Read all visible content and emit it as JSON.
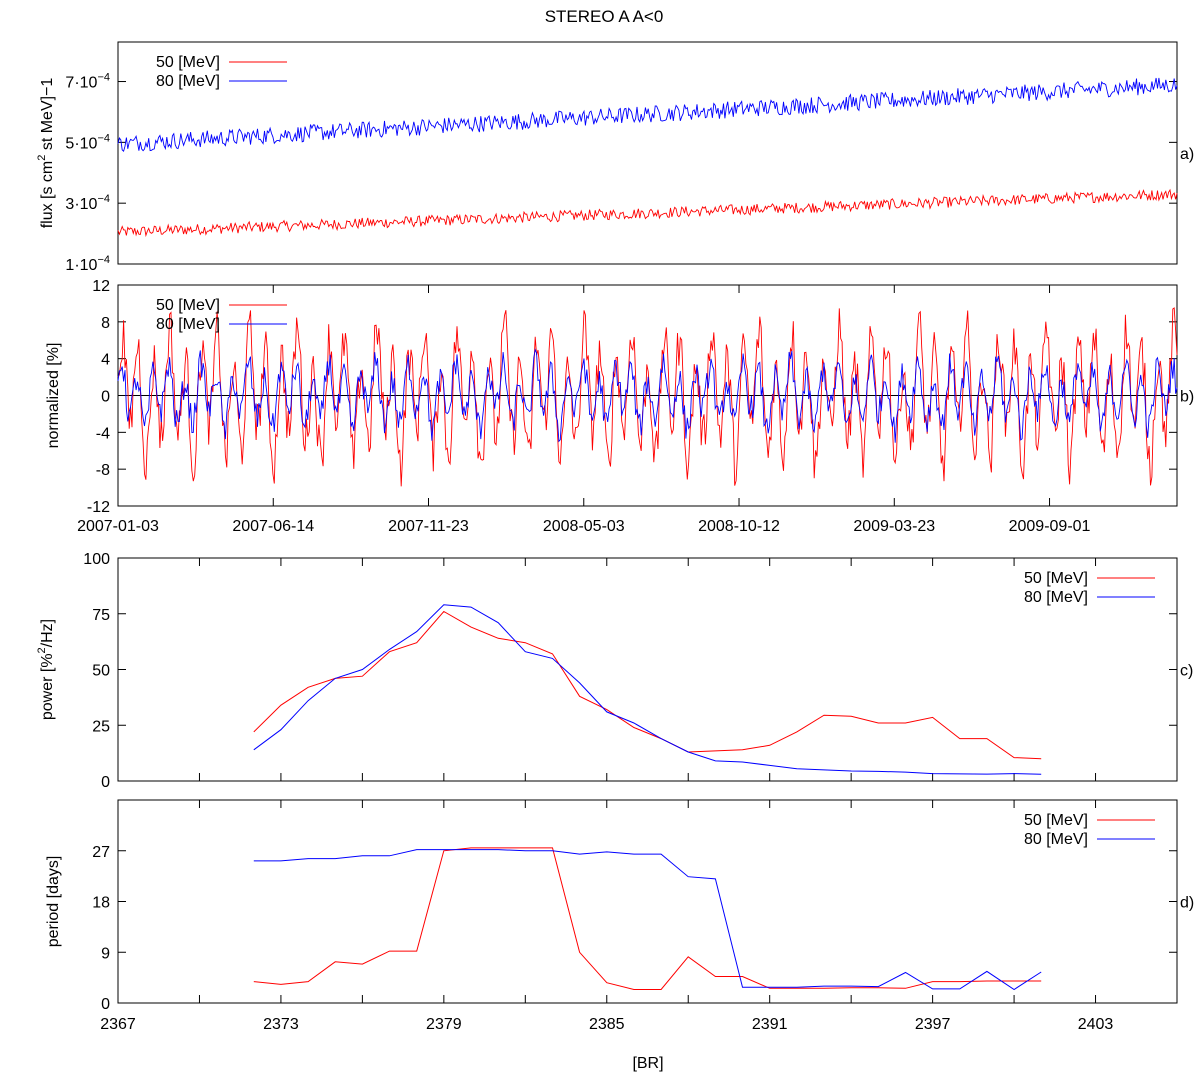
{
  "figure_title": "STEREO A A<0",
  "colors": {
    "red": "#ff0000",
    "blue": "#0000ff"
  },
  "chart_data": [
    {
      "panel": "a)",
      "type": "line",
      "ylabel_pre": "flux [s cm",
      "ylabel_sup": "2",
      "ylabel_post": " st MeV]−1",
      "y_ticks": [
        {
          "value": 0.0001,
          "base": "1·10",
          "exp": "−4"
        },
        {
          "value": 0.0003,
          "base": "3·10",
          "exp": "−4"
        },
        {
          "value": 0.0005,
          "base": "5·10",
          "exp": "−4"
        },
        {
          "value": 0.0007,
          "base": "7·10",
          "exp": "−4"
        }
      ],
      "ylim": [
        0.0001,
        0.00083
      ],
      "xlim": [
        0,
        1105
      ],
      "legend": [
        "50 [MeV]",
        "80 [MeV]"
      ],
      "legend_position": "top-left",
      "series": [
        {
          "name": "50 [MeV]",
          "color": "red",
          "n": 760,
          "start": 0.000205,
          "end": 0.00033,
          "noise": 1.8e-05
        },
        {
          "name": "80 [MeV]",
          "color": "blue",
          "n": 760,
          "start": 0.000495,
          "end": 0.00069,
          "noise": 2.8e-05
        }
      ]
    },
    {
      "panel": "b)",
      "type": "line",
      "ylabel": "normalized [%]",
      "y_ticks": [
        -12,
        -8,
        -4,
        0,
        4,
        8,
        12
      ],
      "ylim": [
        -12,
        12
      ],
      "xlim": [
        0,
        1105
      ],
      "x_tick_labels": [
        "2007-01-03",
        "2007-06-14",
        "2007-11-23",
        "2008-05-03",
        "2008-10-12",
        "2009-03-23",
        "2009-09-01"
      ],
      "x_tick_values": [
        0,
        162,
        324,
        486,
        648,
        810,
        972
      ],
      "legend": [
        "50 [MeV]",
        "80 [MeV]"
      ],
      "legend_position": "top-left",
      "series": [
        {
          "name": "50 [MeV]",
          "color": "red",
          "n": 760,
          "amplitude": 5.2,
          "noise": 1.2
        },
        {
          "name": "80 [MeV]",
          "color": "blue",
          "n": 760,
          "amplitude": 2.6,
          "noise": 0.7
        }
      ]
    },
    {
      "panel": "c)",
      "type": "line",
      "ylabel_pre": "power [%",
      "ylabel_sup": "2",
      "ylabel_post": "/Hz]",
      "y_ticks": [
        0,
        25,
        50,
        75,
        100
      ],
      "ylim": [
        0,
        100
      ],
      "xlim": [
        2367,
        2406
      ],
      "legend": [
        "50 [MeV]",
        "80 [MeV]"
      ],
      "legend_position": "top-right",
      "x": [
        2372,
        2373,
        2374,
        2375,
        2376,
        2377,
        2378,
        2379,
        2380,
        2381,
        2382,
        2383,
        2384,
        2385,
        2386,
        2387,
        2388,
        2389,
        2390,
        2391,
        2392,
        2393,
        2394,
        2395,
        2396,
        2397,
        2398,
        2399,
        2400,
        2401
      ],
      "series": [
        {
          "name": "50 [MeV]",
          "color": "red",
          "values": [
            22,
            34,
            42,
            46,
            47,
            58,
            62,
            76,
            69,
            64,
            62,
            57,
            38,
            32,
            24,
            19,
            13,
            13.5,
            14,
            16,
            22,
            29.5,
            29,
            26,
            26,
            28.5,
            19,
            19,
            10.5,
            10
          ]
        },
        {
          "name": "80 [MeV]",
          "color": "blue",
          "values": [
            14,
            23,
            36,
            46,
            50,
            59,
            67,
            79,
            78,
            71,
            58,
            55,
            44,
            31,
            26,
            19,
            13,
            9,
            8.5,
            7,
            5.5,
            5,
            4.5,
            4.3,
            4,
            3.3,
            3.2,
            3.1,
            3.3,
            3
          ]
        }
      ]
    },
    {
      "panel": "d)",
      "type": "line",
      "ylabel": "period [days]",
      "xlabel": "[BR]",
      "y_ticks": [
        0,
        9,
        18,
        27
      ],
      "ylim": [
        0,
        36
      ],
      "xlim": [
        2367,
        2406
      ],
      "x_ticks": [
        2367,
        2373,
        2379,
        2385,
        2391,
        2397,
        2403
      ],
      "legend": [
        "50 [MeV]",
        "80 [MeV]"
      ],
      "legend_position": "top-right",
      "x": [
        2372,
        2373,
        2374,
        2375,
        2376,
        2377,
        2378,
        2379,
        2380,
        2381,
        2382,
        2383,
        2384,
        2385,
        2386,
        2387,
        2388,
        2389,
        2390,
        2391,
        2392,
        2393,
        2394,
        2395,
        2396,
        2397,
        2398,
        2399,
        2400,
        2401
      ],
      "series": [
        {
          "name": "50 [MeV]",
          "color": "red",
          "values": [
            3.8,
            3.3,
            3.8,
            7.3,
            6.9,
            9.2,
            9.2,
            27,
            27.5,
            27.5,
            27.5,
            27.5,
            9,
            3.6,
            2.4,
            2.4,
            8.2,
            4.7,
            4.7,
            2.6,
            2.6,
            2.6,
            2.7,
            2.7,
            2.6,
            3.8,
            3.8,
            3.9,
            3.9,
            3.9
          ]
        },
        {
          "name": "80 [MeV]",
          "color": "blue",
          "values": [
            25.2,
            25.2,
            25.6,
            25.6,
            26.1,
            26.1,
            27.2,
            27.2,
            27.2,
            27.2,
            27,
            27,
            26.4,
            26.8,
            26.4,
            26.4,
            22.4,
            22,
            2.8,
            2.8,
            2.8,
            3,
            3,
            2.9,
            5.4,
            2.5,
            2.5,
            5.6,
            2.4,
            5.5
          ]
        }
      ]
    }
  ]
}
